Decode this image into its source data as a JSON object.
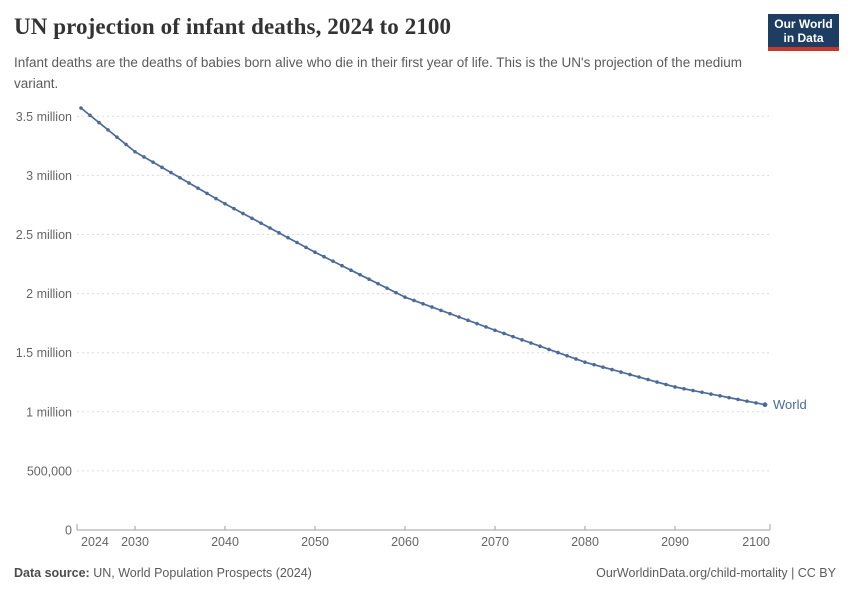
{
  "header": {
    "title": "UN projection of infant deaths, 2024 to 2100",
    "subtitle": "Infant deaths are the deaths of babies born alive who die in their first year of life. This is the UN's projection of the medium variant.",
    "logo": {
      "line1": "Our World",
      "line2": "in Data"
    }
  },
  "footer": {
    "data_source_label": "Data source:",
    "data_source_value": " UN, World Population Prospects (2024)",
    "attribution": "OurWorldinData.org/child-mortality | CC BY"
  },
  "colors": {
    "line": "#4C6A9C",
    "grid": "#dcdcdc",
    "axis": "#a1a1a1",
    "tick_label": "#666666",
    "logo_bg": "#1d3d63",
    "logo_red": "#c5392d"
  },
  "chart_data": {
    "type": "line",
    "title": "UN projection of infant deaths, 2024 to 2100",
    "unit": "infant deaths per year (millions)",
    "xlabel": "",
    "ylabel": "",
    "xlim": [
      2024,
      2102
    ],
    "ylim": [
      0,
      3.68
    ],
    "grid": "horizontal dashed",
    "legend": "end-of-line label",
    "x_ticks": [
      2024,
      2030,
      2040,
      2050,
      2060,
      2070,
      2080,
      2090,
      2100
    ],
    "y_ticks": [
      {
        "value": 0,
        "label": "0"
      },
      {
        "value": 0.5,
        "label": "500,000"
      },
      {
        "value": 1,
        "label": "1 million"
      },
      {
        "value": 1.5,
        "label": "1.5 million"
      },
      {
        "value": 2,
        "label": "2 million"
      },
      {
        "value": 2.5,
        "label": "2.5 million"
      },
      {
        "value": 3,
        "label": "3 million"
      },
      {
        "value": 3.5,
        "label": "3.5 million"
      }
    ],
    "series": [
      {
        "name": "World",
        "x": [
          2024,
          2025,
          2026,
          2027,
          2028,
          2029,
          2030,
          2031,
          2032,
          2033,
          2034,
          2035,
          2036,
          2037,
          2038,
          2039,
          2040,
          2041,
          2042,
          2043,
          2044,
          2045,
          2046,
          2047,
          2048,
          2049,
          2050,
          2051,
          2052,
          2053,
          2054,
          2055,
          2056,
          2057,
          2058,
          2059,
          2060,
          2061,
          2062,
          2063,
          2064,
          2065,
          2066,
          2067,
          2068,
          2069,
          2070,
          2071,
          2072,
          2073,
          2074,
          2075,
          2076,
          2077,
          2078,
          2079,
          2080,
          2081,
          2082,
          2083,
          2084,
          2085,
          2086,
          2087,
          2088,
          2089,
          2090,
          2091,
          2092,
          2093,
          2094,
          2095,
          2096,
          2097,
          2098,
          2099,
          2100
        ],
        "values_millions": [
          3.57,
          3.508,
          3.447,
          3.385,
          3.323,
          3.262,
          3.2,
          3.156,
          3.112,
          3.068,
          3.024,
          2.98,
          2.936,
          2.892,
          2.848,
          2.804,
          2.76,
          2.719,
          2.678,
          2.637,
          2.596,
          2.555,
          2.514,
          2.473,
          2.432,
          2.391,
          2.35,
          2.312,
          2.274,
          2.236,
          2.198,
          2.16,
          2.122,
          2.084,
          2.046,
          2.008,
          1.97,
          1.942,
          1.914,
          1.886,
          1.858,
          1.83,
          1.802,
          1.774,
          1.746,
          1.718,
          1.69,
          1.663,
          1.636,
          1.609,
          1.582,
          1.555,
          1.528,
          1.501,
          1.474,
          1.447,
          1.42,
          1.399,
          1.378,
          1.357,
          1.336,
          1.315,
          1.294,
          1.273,
          1.252,
          1.231,
          1.21,
          1.195,
          1.18,
          1.165,
          1.15,
          1.135,
          1.12,
          1.105,
          1.09,
          1.075,
          1.06
        ]
      }
    ]
  }
}
